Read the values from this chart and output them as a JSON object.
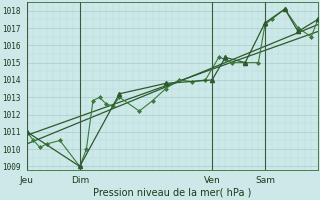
{
  "xlabel": "Pression niveau de la mer( hPa )",
  "bg_color": "#cce8e8",
  "grid_color_major": "#aacccc",
  "grid_color_minor": "#bbdddd",
  "line_color_dark": "#2d5a2d",
  "line_color_medium": "#3a7a3a",
  "ylim": [
    1008.8,
    1018.5
  ],
  "yticks": [
    1009,
    1010,
    1011,
    1012,
    1013,
    1014,
    1015,
    1016,
    1017,
    1018
  ],
  "xlim": [
    0,
    132
  ],
  "day_positions": [
    0,
    24,
    84,
    108
  ],
  "day_labels": [
    "Jeu",
    "Dim",
    "Ven",
    "Sam"
  ],
  "series_dense_x": [
    0,
    3,
    6,
    9,
    15,
    24,
    27,
    30,
    33,
    36,
    39,
    42,
    51,
    57,
    63,
    69,
    75,
    81,
    87,
    90,
    93,
    99,
    105,
    108,
    111,
    117,
    123,
    129,
    132
  ],
  "series_dense_y": [
    1011.0,
    1010.5,
    1010.1,
    1010.3,
    1010.5,
    1009.0,
    1010.0,
    1012.8,
    1013.0,
    1012.6,
    1012.5,
    1013.0,
    1012.2,
    1012.8,
    1013.5,
    1014.0,
    1013.9,
    1014.0,
    1015.3,
    1015.2,
    1015.0,
    1015.0,
    1015.0,
    1017.2,
    1017.5,
    1018.1,
    1017.0,
    1016.5,
    1017.5
  ],
  "series_sparse_x": [
    0,
    24,
    42,
    63,
    84,
    90,
    99,
    108,
    117,
    123,
    132
  ],
  "series_sparse_y": [
    1011.0,
    1009.0,
    1013.2,
    1013.8,
    1014.0,
    1015.3,
    1015.0,
    1017.3,
    1018.1,
    1016.8,
    1017.5
  ],
  "trend1_x": [
    0,
    132
  ],
  "trend1_y": [
    1010.3,
    1017.2
  ],
  "trend2_x": [
    0,
    132
  ],
  "trend2_y": [
    1010.8,
    1016.8
  ]
}
